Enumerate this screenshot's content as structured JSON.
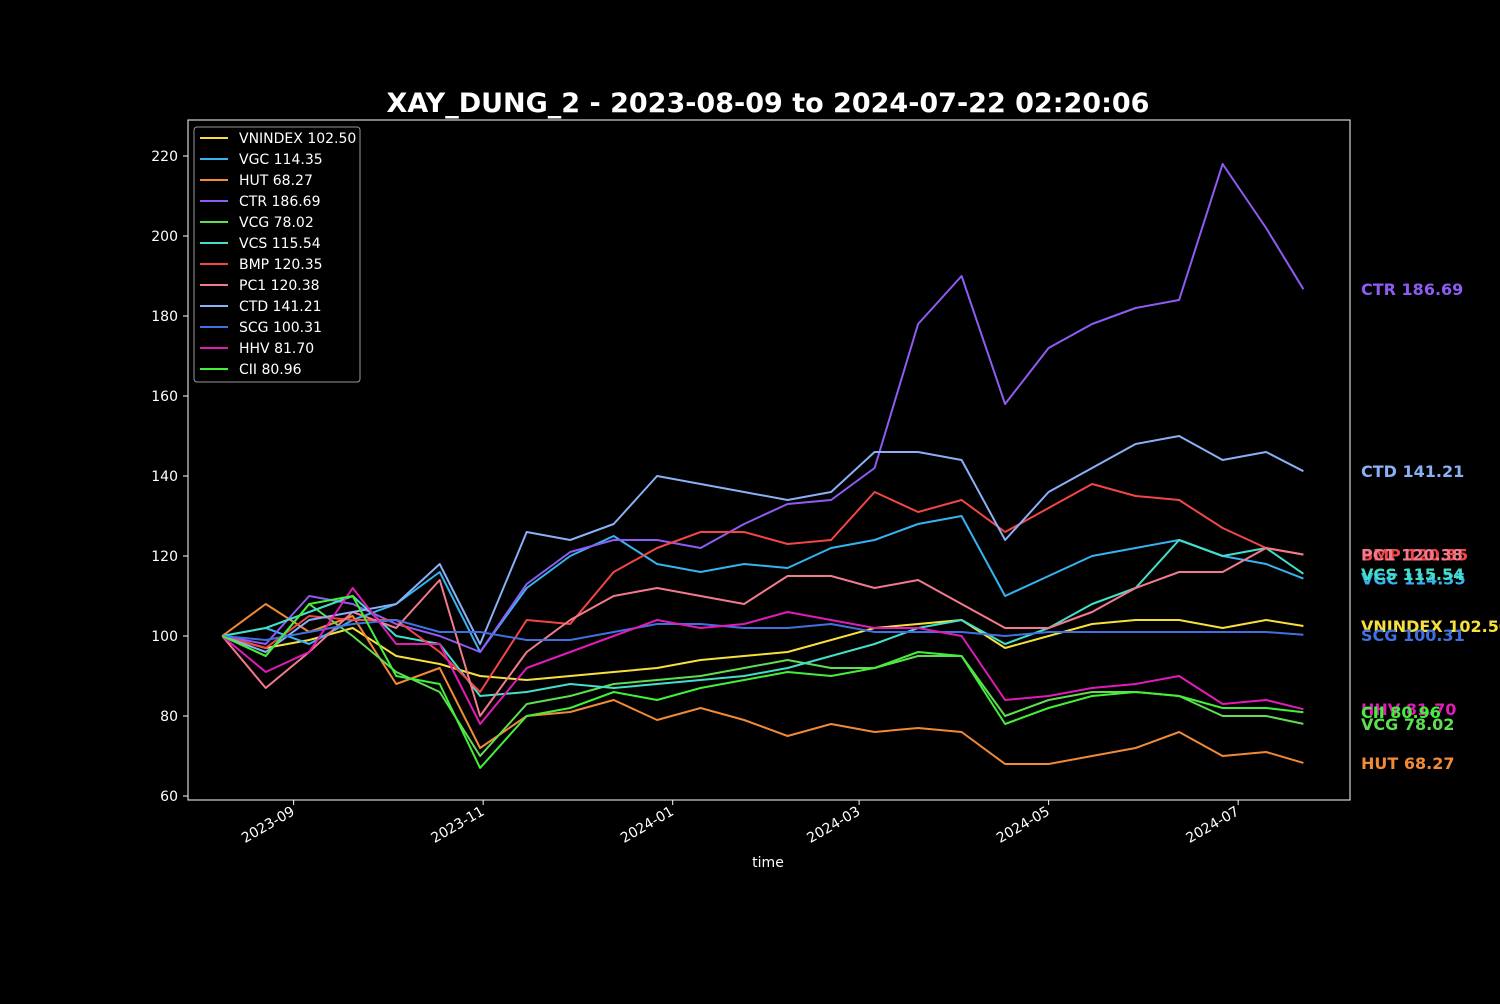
{
  "chart_data": {
    "type": "line",
    "title": "XAY_DUNG_2 - 2023-08-09 to 2024-07-22 02:20:06",
    "xlabel": "time",
    "ylabel": "",
    "x_range": [
      "2023-07-29",
      "2024-08-06"
    ],
    "ylim": [
      59,
      229
    ],
    "y_ticks": [
      60,
      80,
      100,
      120,
      140,
      160,
      180,
      200,
      220
    ],
    "x_ticks": [
      {
        "date": "2023-09-01",
        "label": "2023-09"
      },
      {
        "date": "2023-11-01",
        "label": "2023-11"
      },
      {
        "date": "2024-01-01",
        "label": "2024-01"
      },
      {
        "date": "2024-03-01",
        "label": "2024-03"
      },
      {
        "date": "2024-05-01",
        "label": "2024-05"
      },
      {
        "date": "2024-07-01",
        "label": "2024-07"
      }
    ],
    "grid": false,
    "legend_position": "top-left",
    "dates": [
      "2023-08-09",
      "2023-08-23",
      "2023-09-06",
      "2023-09-20",
      "2023-10-04",
      "2023-10-18",
      "2023-10-31",
      "2023-11-15",
      "2023-11-29",
      "2023-12-13",
      "2023-12-27",
      "2024-01-10",
      "2024-01-24",
      "2024-02-07",
      "2024-02-21",
      "2024-03-06",
      "2024-03-20",
      "2024-04-03",
      "2024-04-17",
      "2024-05-01",
      "2024-05-15",
      "2024-05-29",
      "2024-06-12",
      "2024-06-26",
      "2024-07-10",
      "2024-07-22"
    ],
    "series": [
      {
        "name": "VNINDEX",
        "label": "VNINDEX 102.50",
        "color": "#f7e03c",
        "values": [
          100,
          97,
          99,
          102,
          95,
          93,
          90,
          89,
          90,
          91,
          92,
          94,
          95,
          96,
          99,
          102,
          103,
          104,
          97,
          100,
          103,
          104,
          104,
          102,
          104,
          102.5
        ]
      },
      {
        "name": "VGC",
        "label": "VGC 114.35",
        "color": "#36b3f0",
        "values": [
          100,
          102,
          98,
          104,
          108,
          116,
          96,
          112,
          120,
          125,
          118,
          116,
          118,
          117,
          122,
          124,
          128,
          130,
          110,
          115,
          120,
          122,
          124,
          120,
          118,
          114.35
        ]
      },
      {
        "name": "HUT",
        "label": "HUT 68.27",
        "color": "#f08a36",
        "values": [
          100,
          108,
          101,
          105,
          88,
          92,
          72,
          80,
          81,
          84,
          79,
          82,
          79,
          75,
          78,
          76,
          77,
          76,
          68,
          68,
          70,
          72,
          76,
          70,
          71,
          68.27
        ]
      },
      {
        "name": "CTR",
        "label": "CTR 186.69",
        "color": "#8e5cf2",
        "values": [
          100,
          98,
          110,
          108,
          103,
          100,
          96,
          113,
          121,
          124,
          124,
          122,
          128,
          133,
          134,
          142,
          178,
          190,
          158,
          172,
          178,
          182,
          184,
          218,
          202,
          186.69
        ]
      },
      {
        "name": "VCG",
        "label": "VCG 78.02",
        "color": "#5fde52",
        "values": [
          100,
          95,
          108,
          100,
          91,
          86,
          70,
          83,
          85,
          88,
          89,
          90,
          92,
          94,
          92,
          92,
          95,
          95,
          80,
          84,
          86,
          86,
          85,
          80,
          80,
          78.02
        ]
      },
      {
        "name": "VCS",
        "label": "VCS 115.54",
        "color": "#42e0c8",
        "values": [
          100,
          102,
          106,
          110,
          100,
          98,
          85,
          86,
          88,
          87,
          88,
          89,
          90,
          92,
          95,
          98,
          102,
          104,
          98,
          102,
          108,
          112,
          124,
          120,
          122,
          115.54
        ]
      },
      {
        "name": "BMP",
        "label": "BMP 120.35",
        "color": "#f24646",
        "values": [
          100,
          97,
          105,
          104,
          104,
          96,
          86,
          104,
          103,
          116,
          122,
          126,
          126,
          123,
          124,
          136,
          131,
          134,
          126,
          132,
          138,
          135,
          134,
          127,
          122,
          120.35
        ]
      },
      {
        "name": "PC1",
        "label": "PC1 120.38",
        "color": "#f27a8c",
        "values": [
          100,
          87,
          96,
          106,
          102,
          114,
          80,
          96,
          104,
          110,
          112,
          110,
          108,
          115,
          115,
          112,
          114,
          108,
          102,
          102,
          106,
          112,
          116,
          116,
          122,
          120.38
        ]
      },
      {
        "name": "CTD",
        "label": "CTD 141.21",
        "color": "#8ab0f5",
        "values": [
          100,
          96,
          104,
          106,
          108,
          118,
          98,
          126,
          124,
          128,
          140,
          138,
          136,
          134,
          136,
          146,
          146,
          144,
          124,
          136,
          142,
          148,
          150,
          144,
          146,
          141.21
        ]
      },
      {
        "name": "SCG",
        "label": "SCG 100.31",
        "color": "#3f72e0",
        "values": [
          100,
          99,
          101,
          103,
          104,
          101,
          101,
          99,
          99,
          101,
          103,
          103,
          102,
          102,
          103,
          101,
          101,
          101,
          100,
          101,
          101,
          101,
          101,
          101,
          101,
          100.31
        ]
      },
      {
        "name": "HHV",
        "label": "HHV 81.70",
        "color": "#e01cb8",
        "values": [
          100,
          91,
          96,
          112,
          98,
          98,
          78,
          92,
          96,
          100,
          104,
          102,
          103,
          106,
          104,
          102,
          102,
          100,
          84,
          85,
          87,
          88,
          90,
          83,
          84,
          81.7
        ]
      },
      {
        "name": "CII",
        "label": "CII 80.96",
        "color": "#42f03a",
        "values": [
          100,
          95,
          108,
          110,
          90,
          88,
          67,
          80,
          82,
          86,
          84,
          87,
          89,
          91,
          90,
          92,
          96,
          95,
          78,
          82,
          85,
          86,
          85,
          82,
          82,
          80.96
        ]
      }
    ]
  }
}
